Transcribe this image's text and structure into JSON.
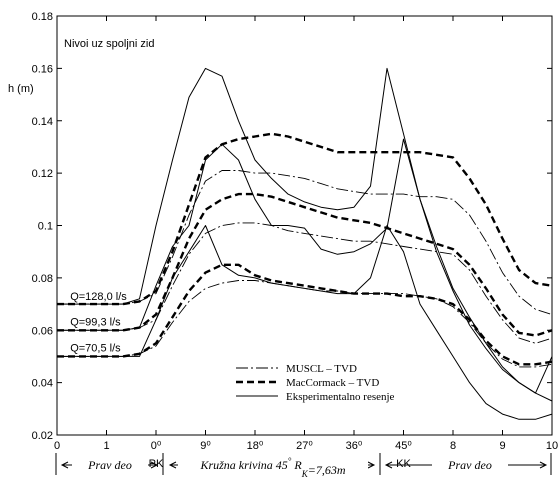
{
  "chart_data": {
    "type": "line",
    "title": "Nivoi uz spoljni zid",
    "ylabel": "h (m)",
    "xlabel": "",
    "ylim": [
      0.02,
      0.18
    ],
    "xlim": [
      0,
      30
    ],
    "y_ticks": [
      0.02,
      0.04,
      0.06,
      0.08,
      0.1,
      0.12,
      0.14,
      0.16,
      0.18
    ],
    "y_tick_labels": [
      "0.02",
      "0.04",
      "0.06",
      "0.08",
      "0.1",
      "0.12",
      "0.14",
      "0.16",
      "0.18"
    ],
    "x_tick_labels": [
      "0",
      "1",
      "0⁰",
      "9⁰",
      "18⁰",
      "27⁰",
      "36⁰",
      "45⁰",
      "8",
      "9",
      "10"
    ],
    "x_tick_markers": [
      "0",
      "1",
      "0",
      "9",
      "18",
      "27",
      "36",
      "45",
      "8",
      "9",
      "10"
    ],
    "x_sublabels": [
      {
        "text": "PK",
        "x": 5
      },
      {
        "text": "KK",
        "x": 23
      }
    ],
    "grid": false,
    "legend_position": "bottom-center",
    "legend": [
      {
        "label": "MUSCL – TVD",
        "style": "dash-dot"
      },
      {
        "label": "MacCormack – TVD",
        "style": "bold-dash"
      },
      {
        "label": "Eksperimentalno resenje",
        "style": "solid"
      }
    ],
    "flow_labels": [
      {
        "text": "Q=128,0 l/s",
        "x": 0.8,
        "y": 0.0715
      },
      {
        "text": "Q=99,3 l/s",
        "x": 0.8,
        "y": 0.0618
      },
      {
        "text": "Q=70,5 l/s",
        "x": 0.8,
        "y": 0.0518
      }
    ],
    "series": [
      {
        "style": "bold-dash",
        "x": [
          0,
          1,
          2,
          3,
          4,
          5,
          6,
          7,
          8,
          9,
          10,
          11,
          12,
          13,
          14,
          15,
          16,
          17,
          18,
          19,
          20,
          21,
          22,
          23,
          24,
          25,
          26,
          27,
          28,
          29,
          30
        ],
        "values": [
          0.07,
          0.07,
          0.07,
          0.07,
          0.07,
          0.071,
          0.075,
          0.09,
          0.108,
          0.126,
          0.131,
          0.133,
          0.134,
          0.135,
          0.134,
          0.132,
          0.13,
          0.128,
          0.128,
          0.128,
          0.128,
          0.128,
          0.128,
          0.127,
          0.126,
          0.118,
          0.108,
          0.095,
          0.083,
          0.078,
          0.077
        ]
      },
      {
        "style": "dash-dot",
        "x": [
          0,
          1,
          2,
          3,
          4,
          5,
          6,
          7,
          8,
          9,
          10,
          11,
          12,
          13,
          14,
          15,
          16,
          17,
          18,
          19,
          20,
          21,
          22,
          23,
          24,
          25,
          26,
          27,
          28,
          29,
          30
        ],
        "values": [
          0.07,
          0.07,
          0.07,
          0.07,
          0.07,
          0.071,
          0.074,
          0.088,
          0.104,
          0.117,
          0.121,
          0.121,
          0.12,
          0.12,
          0.119,
          0.118,
          0.116,
          0.114,
          0.113,
          0.112,
          0.112,
          0.112,
          0.111,
          0.111,
          0.11,
          0.104,
          0.094,
          0.082,
          0.073,
          0.068,
          0.066
        ]
      },
      {
        "style": "solid",
        "x": [
          0,
          1,
          2,
          3,
          4,
          5,
          6,
          7,
          8,
          9,
          10,
          11,
          12,
          13,
          14,
          15,
          16,
          17,
          18,
          19,
          20,
          21,
          22,
          23,
          24,
          25,
          26,
          27,
          28,
          29,
          30
        ],
        "values": [
          0.07,
          0.07,
          0.07,
          0.07,
          0.07,
          0.072,
          0.1,
          0.125,
          0.149,
          0.16,
          0.157,
          0.14,
          0.125,
          0.118,
          0.112,
          0.109,
          0.107,
          0.106,
          0.107,
          0.115,
          0.16,
          0.135,
          0.11,
          0.09,
          0.075,
          0.062,
          0.053,
          0.045,
          0.04,
          0.036,
          0.05
        ]
      },
      {
        "style": "bold-dash",
        "x": [
          0,
          1,
          2,
          3,
          4,
          5,
          6,
          7,
          8,
          9,
          10,
          11,
          12,
          13,
          14,
          15,
          16,
          17,
          18,
          19,
          20,
          21,
          22,
          23,
          24,
          25,
          26,
          27,
          28,
          29,
          30
        ],
        "values": [
          0.06,
          0.06,
          0.06,
          0.06,
          0.06,
          0.061,
          0.066,
          0.08,
          0.095,
          0.106,
          0.11,
          0.112,
          0.112,
          0.111,
          0.109,
          0.107,
          0.105,
          0.103,
          0.102,
          0.101,
          0.099,
          0.097,
          0.095,
          0.093,
          0.091,
          0.085,
          0.076,
          0.066,
          0.059,
          0.058,
          0.06
        ]
      },
      {
        "style": "dash-dot",
        "x": [
          0,
          1,
          2,
          3,
          4,
          5,
          6,
          7,
          8,
          9,
          10,
          11,
          12,
          13,
          14,
          15,
          16,
          17,
          18,
          19,
          20,
          21,
          22,
          23,
          24,
          25,
          26,
          27,
          28,
          29,
          30
        ],
        "values": [
          0.06,
          0.06,
          0.06,
          0.06,
          0.06,
          0.061,
          0.064,
          0.077,
          0.089,
          0.097,
          0.1,
          0.101,
          0.101,
          0.1,
          0.098,
          0.097,
          0.096,
          0.095,
          0.094,
          0.094,
          0.093,
          0.092,
          0.091,
          0.09,
          0.089,
          0.083,
          0.073,
          0.064,
          0.057,
          0.055,
          0.057
        ]
      },
      {
        "style": "solid",
        "x": [
          0,
          1,
          2,
          3,
          4,
          5,
          6,
          7,
          8,
          9,
          10,
          11,
          12,
          13,
          14,
          15,
          16,
          17,
          18,
          19,
          20,
          21,
          22,
          23,
          24,
          25,
          26,
          27,
          28,
          29,
          30
        ],
        "values": [
          0.06,
          0.06,
          0.06,
          0.06,
          0.06,
          0.061,
          0.077,
          0.092,
          0.1,
          0.125,
          0.131,
          0.125,
          0.11,
          0.1,
          0.1,
          0.099,
          0.091,
          0.089,
          0.09,
          0.093,
          0.099,
          0.133,
          0.11,
          0.092,
          0.076,
          0.065,
          0.055,
          0.046,
          0.04,
          0.036,
          0.033
        ]
      },
      {
        "style": "bold-dash",
        "x": [
          0,
          1,
          2,
          3,
          4,
          5,
          6,
          7,
          8,
          9,
          10,
          11,
          12,
          13,
          14,
          15,
          16,
          17,
          18,
          19,
          20,
          21,
          22,
          23,
          24,
          25,
          26,
          27,
          28,
          29,
          30
        ],
        "values": [
          0.05,
          0.05,
          0.05,
          0.05,
          0.05,
          0.051,
          0.055,
          0.065,
          0.075,
          0.082,
          0.085,
          0.085,
          0.081,
          0.079,
          0.078,
          0.077,
          0.076,
          0.075,
          0.074,
          0.074,
          0.074,
          0.073,
          0.073,
          0.072,
          0.07,
          0.064,
          0.056,
          0.05,
          0.047,
          0.047,
          0.048
        ]
      },
      {
        "style": "dash-dot",
        "x": [
          0,
          1,
          2,
          3,
          4,
          5,
          6,
          7,
          8,
          9,
          10,
          11,
          12,
          13,
          14,
          15,
          16,
          17,
          18,
          19,
          20,
          21,
          22,
          23,
          24,
          25,
          26,
          27,
          28,
          29,
          30
        ],
        "values": [
          0.05,
          0.05,
          0.05,
          0.05,
          0.05,
          0.051,
          0.054,
          0.063,
          0.071,
          0.076,
          0.078,
          0.079,
          0.079,
          0.078,
          0.077,
          0.076,
          0.075,
          0.075,
          0.074,
          0.074,
          0.074,
          0.074,
          0.073,
          0.072,
          0.069,
          0.063,
          0.055,
          0.049,
          0.046,
          0.046,
          0.047
        ]
      },
      {
        "style": "solid",
        "x": [
          0,
          1,
          2,
          3,
          4,
          5,
          6,
          7,
          8,
          9,
          10,
          11,
          12,
          13,
          14,
          15,
          16,
          17,
          18,
          19,
          20,
          21,
          22,
          23,
          24,
          25,
          26,
          27,
          28,
          29,
          30
        ],
        "values": [
          0.05,
          0.05,
          0.05,
          0.05,
          0.05,
          0.05,
          0.064,
          0.08,
          0.09,
          0.1,
          0.085,
          0.081,
          0.08,
          0.078,
          0.077,
          0.076,
          0.075,
          0.074,
          0.074,
          0.08,
          0.1,
          0.09,
          0.07,
          0.06,
          0.05,
          0.04,
          0.032,
          0.028,
          0.026,
          0.026,
          0.028
        ]
      }
    ]
  },
  "sections": [
    {
      "label": "Prav deo",
      "x0": 0,
      "x1": 5
    },
    {
      "label": "Kružna krivina 45",
      "degree": "°",
      "rk_symbol": "R",
      "rk_sub": "K",
      "rk_value": "=7,63m",
      "x0": 5,
      "x1": 23
    },
    {
      "label": "Prav deo",
      "x0": 23,
      "x1": 30
    }
  ]
}
